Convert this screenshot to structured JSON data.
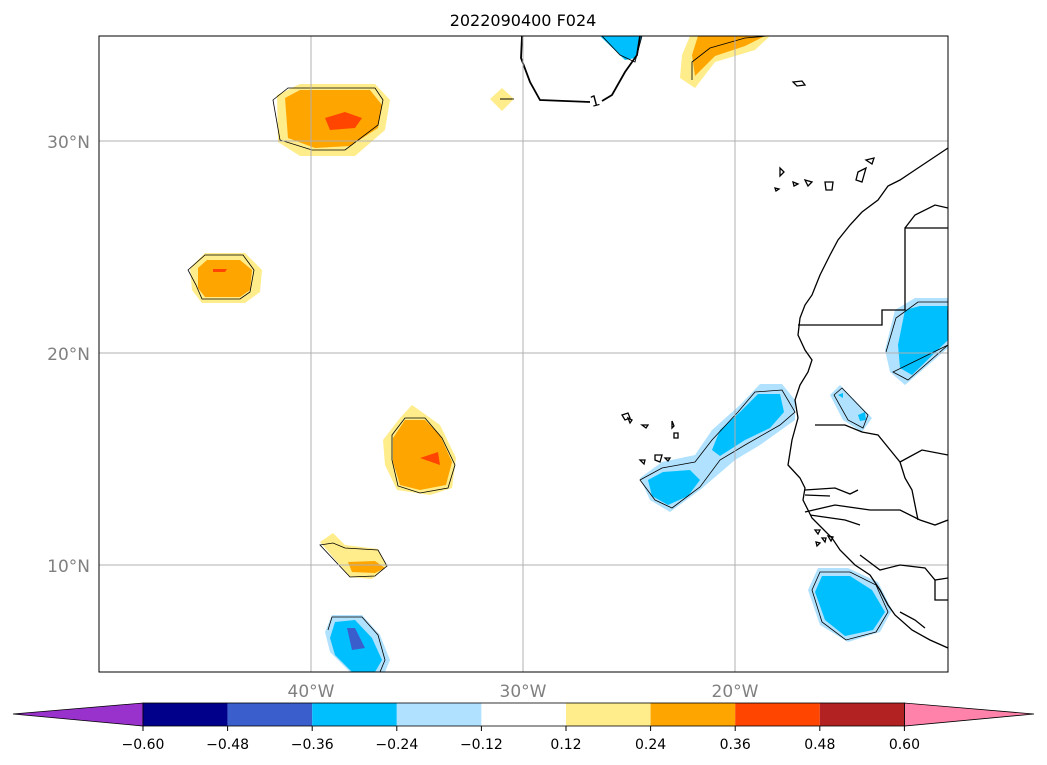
{
  "title": "2022090400 F024",
  "lat_labels": [
    "30°N",
    "20°N",
    "10°N"
  ],
  "lon_labels": [
    "40°W",
    "30°W",
    "20°W"
  ],
  "colorbar": {
    "tick_labels": [
      "−0.60",
      "−0.48",
      "−0.36",
      "−0.24",
      "−0.12",
      "0.12",
      "0.24",
      "0.36",
      "0.48",
      "0.60"
    ],
    "colors": [
      "#9932cc",
      "#00008b",
      "#3a5fcd",
      "#00bfff",
      "#b0e2ff",
      "#ffffff",
      "#ffec8b",
      "#ffa500",
      "#ff4500",
      "#b22222",
      "#ff82ab"
    ]
  },
  "contour_label": "1",
  "colors": {
    "light_yellow": "#ffec8b",
    "orange": "#ffa500",
    "red_orange": "#ff4500",
    "light_blue": "#b0e2ff",
    "deep_sky_blue": "#00bfff",
    "royal_blue": "#3a5fcd",
    "gridline": "#b0b0b0",
    "coastline": "#000000"
  }
}
